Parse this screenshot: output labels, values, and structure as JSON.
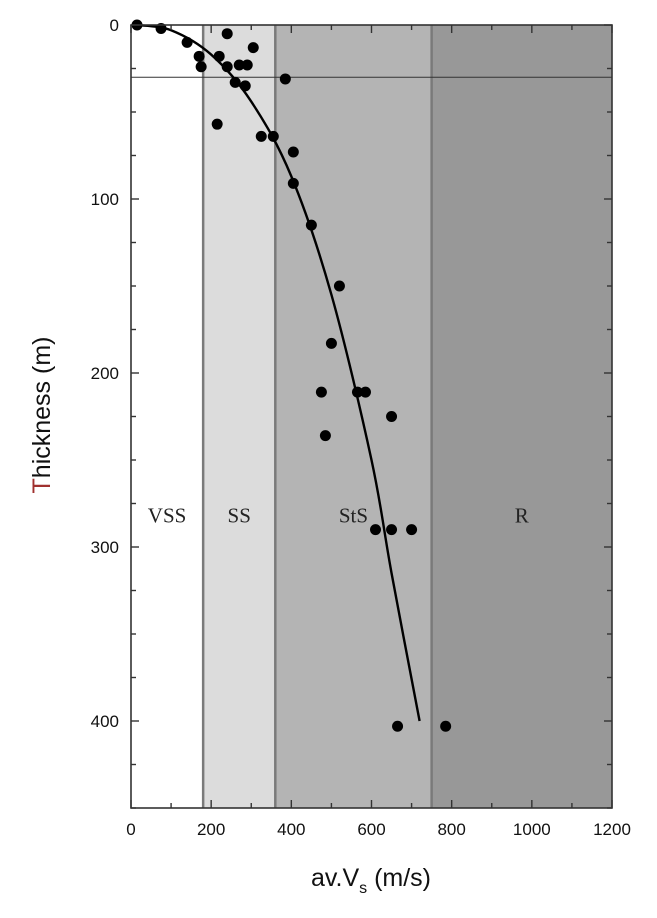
{
  "chart_data": {
    "type": "scatter",
    "title": "",
    "xlabel": {
      "main": "av.V",
      "sub": "s",
      "unit": " (m/s)"
    },
    "ylabel": "Thickness (m)",
    "xlim": [
      0,
      1200
    ],
    "ylim": [
      0,
      450
    ],
    "y_inverted": true,
    "x_ticks": [
      0,
      200,
      400,
      600,
      800,
      1000,
      1200
    ],
    "y_ticks": [
      0,
      100,
      200,
      300,
      400
    ],
    "reference_line_y": 30,
    "zones": [
      {
        "label": "VSS",
        "x_from": 0,
        "x_to": 180,
        "color": "#ffffff"
      },
      {
        "label": "SS",
        "x_from": 180,
        "x_to": 360,
        "color": "#dcdcdc"
      },
      {
        "label": "StS",
        "x_from": 360,
        "x_to": 750,
        "color": "#b4b4b4"
      },
      {
        "label": "R",
        "x_from": 750,
        "x_to": 1200,
        "color": "#989898"
      }
    ],
    "zone_label_y": 282,
    "points": [
      {
        "x": 15,
        "y": 0
      },
      {
        "x": 75,
        "y": 2
      },
      {
        "x": 240,
        "y": 5
      },
      {
        "x": 140,
        "y": 10
      },
      {
        "x": 305,
        "y": 13
      },
      {
        "x": 170,
        "y": 18
      },
      {
        "x": 220,
        "y": 18
      },
      {
        "x": 175,
        "y": 24
      },
      {
        "x": 240,
        "y": 24
      },
      {
        "x": 270,
        "y": 23
      },
      {
        "x": 290,
        "y": 23
      },
      {
        "x": 385,
        "y": 31
      },
      {
        "x": 260,
        "y": 33
      },
      {
        "x": 285,
        "y": 35
      },
      {
        "x": 215,
        "y": 57
      },
      {
        "x": 325,
        "y": 64
      },
      {
        "x": 355,
        "y": 64
      },
      {
        "x": 405,
        "y": 73
      },
      {
        "x": 405,
        "y": 91
      },
      {
        "x": 450,
        "y": 115
      },
      {
        "x": 520,
        "y": 150
      },
      {
        "x": 500,
        "y": 183
      },
      {
        "x": 475,
        "y": 211
      },
      {
        "x": 565,
        "y": 211
      },
      {
        "x": 585,
        "y": 211
      },
      {
        "x": 485,
        "y": 236
      },
      {
        "x": 650,
        "y": 225
      },
      {
        "x": 610,
        "y": 290
      },
      {
        "x": 650,
        "y": 290
      },
      {
        "x": 700,
        "y": 290
      },
      {
        "x": 665,
        "y": 403
      },
      {
        "x": 785,
        "y": 403
      }
    ],
    "fit_curve": [
      {
        "x": 15,
        "y": 0
      },
      {
        "x": 100,
        "y": 3
      },
      {
        "x": 200,
        "y": 17
      },
      {
        "x": 300,
        "y": 44
      },
      {
        "x": 400,
        "y": 87
      },
      {
        "x": 500,
        "y": 155
      },
      {
        "x": 600,
        "y": 250
      },
      {
        "x": 650,
        "y": 315
      },
      {
        "x": 720,
        "y": 400
      }
    ],
    "colors": {
      "background": "#ffffff",
      "points": "#000000",
      "curve": "#000000",
      "frame": "#333333",
      "ylabel_first_letter": "#a0312f"
    }
  }
}
